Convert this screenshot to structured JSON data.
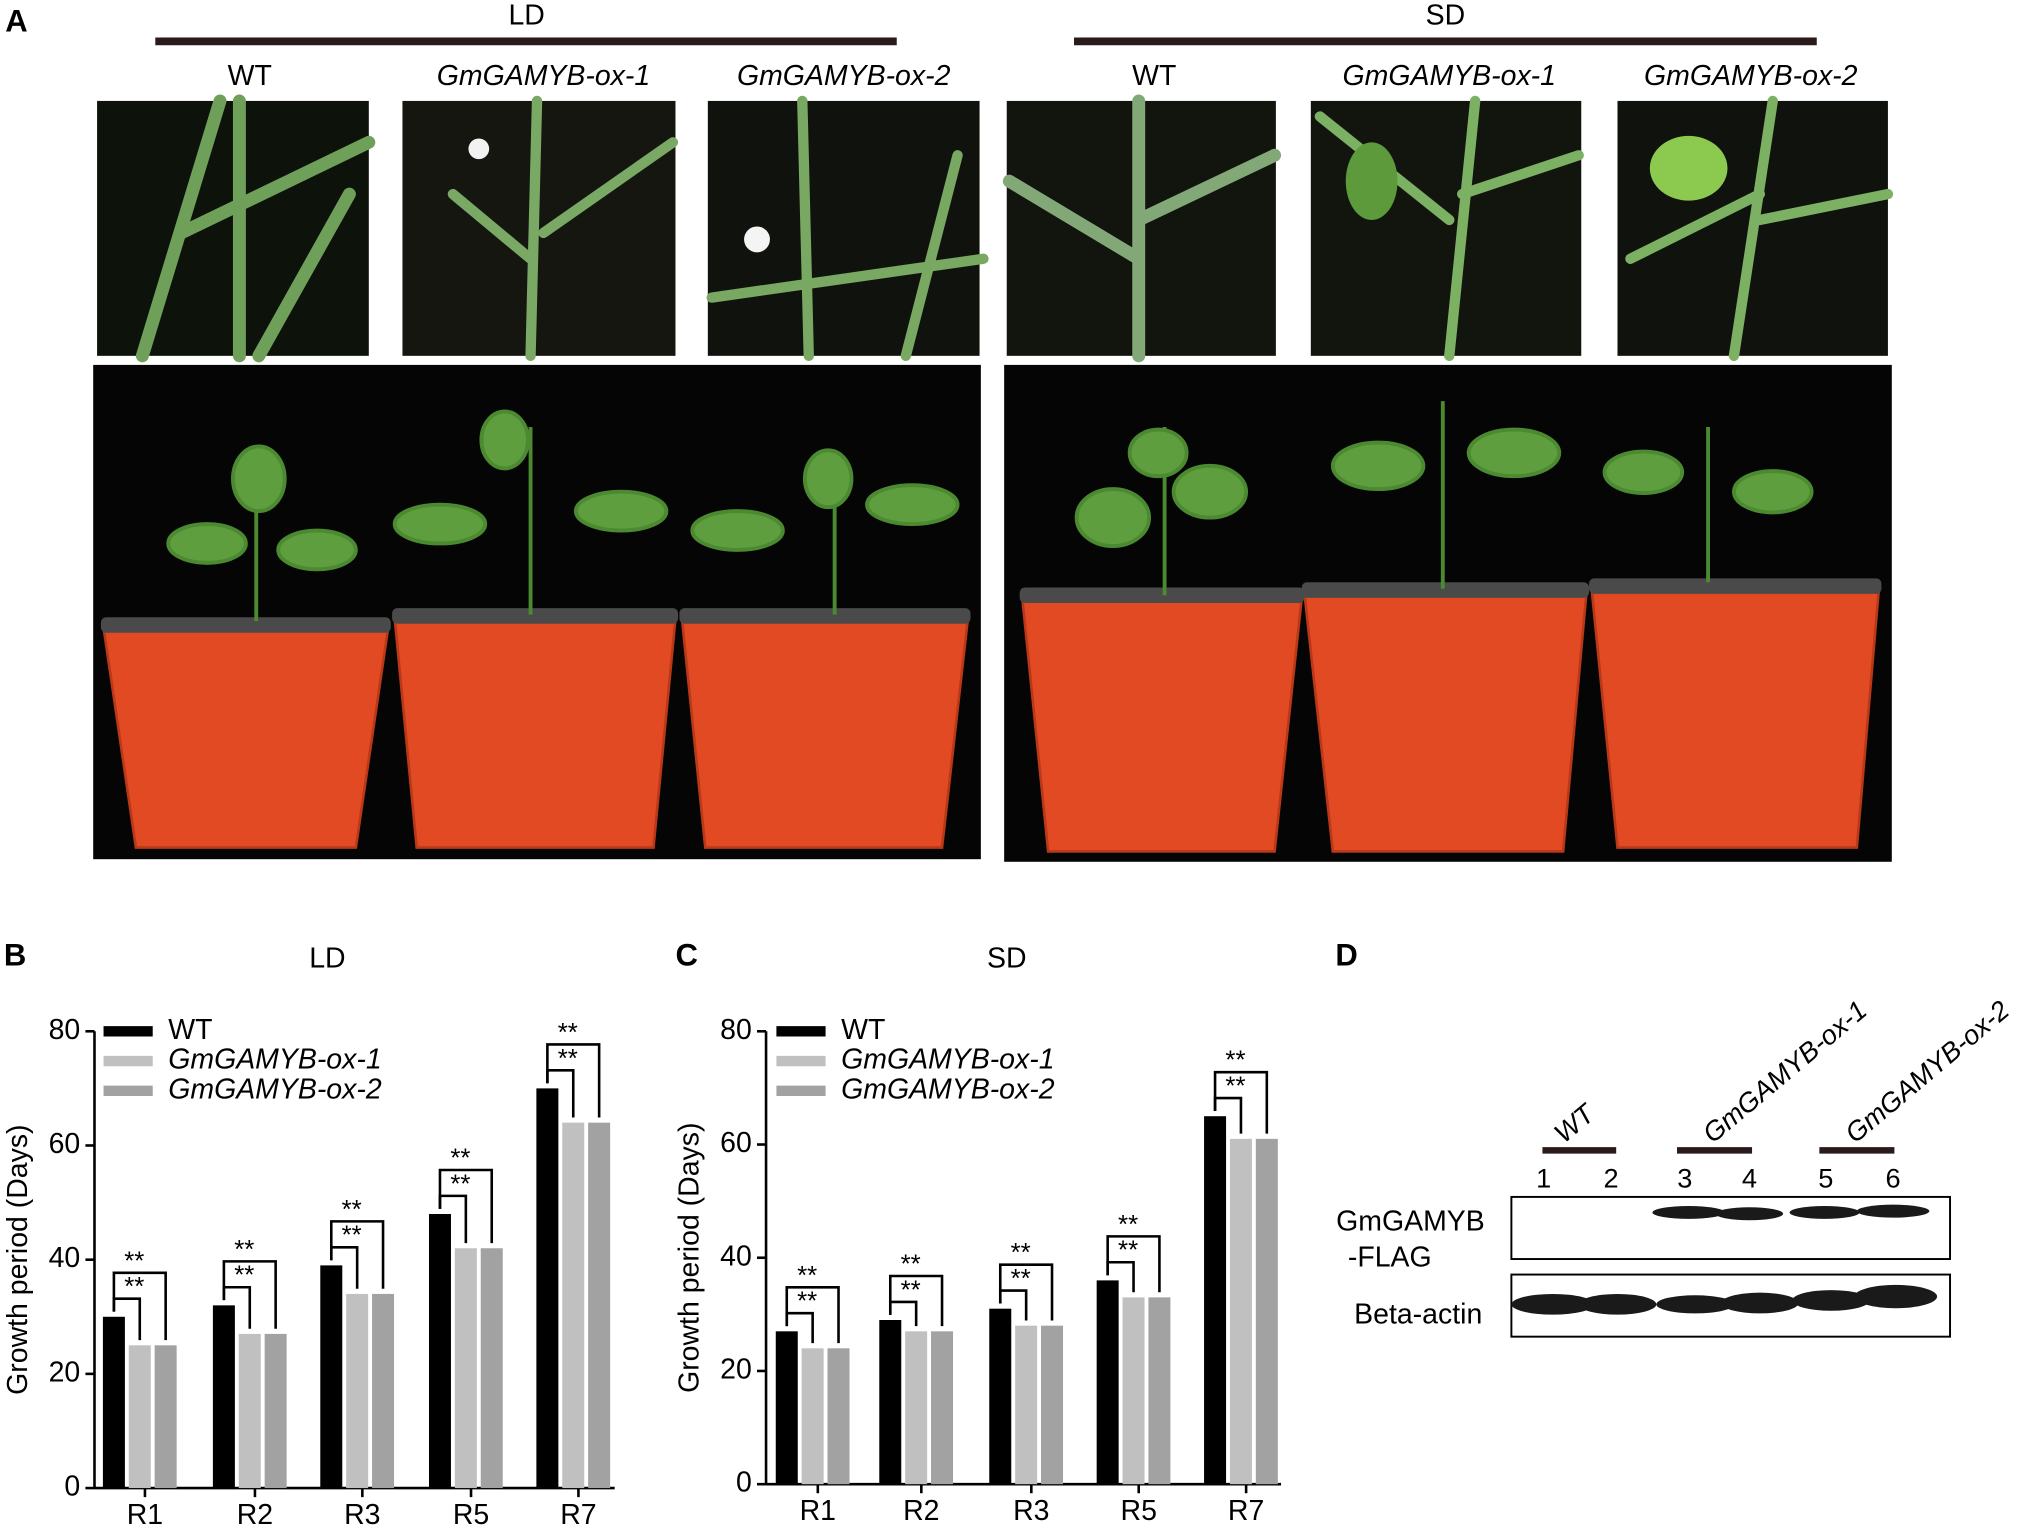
{
  "panel_a": {
    "letter": "A",
    "groups": [
      {
        "label": "LD",
        "genotypes": [
          "WT",
          "GmGAMYB-ox-1",
          "GmGAMYB-ox-2"
        ]
      },
      {
        "label": "SD",
        "genotypes": [
          "WT",
          "GmGAMYB-ox-1",
          "GmGAMYB-ox-2"
        ]
      }
    ]
  },
  "chart_data": [
    {
      "type": "bar",
      "letter": "B",
      "title": "LD",
      "y_label": "Growth period (Days)",
      "categories": [
        "R1",
        "R2",
        "R3",
        "R5",
        "R7"
      ],
      "series": [
        {
          "name": "WT",
          "color": "#000000",
          "values": [
            30,
            32,
            39,
            48,
            70
          ]
        },
        {
          "name": "GmGAMYB-ox-1",
          "color": "#c0c0c0",
          "values": [
            25,
            27,
            34,
            42,
            64
          ]
        },
        {
          "name": "GmGAMYB-ox-2",
          "color": "#a2a2a2",
          "values": [
            25,
            27,
            34,
            42,
            64
          ]
        }
      ],
      "significance": [
        [
          "**",
          "**"
        ],
        [
          "**",
          "**"
        ],
        [
          "**",
          "**"
        ],
        [
          "**",
          "**"
        ],
        [
          "**",
          "**"
        ]
      ],
      "ylim": [
        0,
        80
      ],
      "yticks": [
        0,
        20,
        40,
        60,
        80
      ]
    },
    {
      "type": "bar",
      "letter": "C",
      "title": "SD",
      "y_label": "Growth period (Days)",
      "categories": [
        "R1",
        "R2",
        "R3",
        "R5",
        "R7"
      ],
      "series": [
        {
          "name": "WT",
          "color": "#000000",
          "values": [
            27,
            29,
            31,
            36,
            65
          ]
        },
        {
          "name": "GmGAMYB-ox-1",
          "color": "#c0c0c0",
          "values": [
            24,
            27,
            28,
            33,
            61
          ]
        },
        {
          "name": "GmGAMYB-ox-2",
          "color": "#a2a2a2",
          "values": [
            24,
            27,
            28,
            33,
            61
          ]
        }
      ],
      "significance": [
        [
          "**",
          "**"
        ],
        [
          "**",
          "**"
        ],
        [
          "**",
          "**"
        ],
        [
          "**",
          "**"
        ],
        [
          "**",
          "**"
        ]
      ],
      "ylim": [
        0,
        80
      ],
      "yticks": [
        0,
        20,
        40,
        60,
        80
      ]
    }
  ],
  "panel_d": {
    "letter": "D",
    "lane_groups": [
      "WT",
      "GmGAMYB-ox-1",
      "GmGAMYB-ox-2"
    ],
    "lanes": [
      "1",
      "2",
      "3",
      "4",
      "5",
      "6"
    ],
    "rows": [
      [
        "GmGAMYB",
        "-FLAG"
      ],
      [
        "Beta-actin"
      ]
    ]
  }
}
